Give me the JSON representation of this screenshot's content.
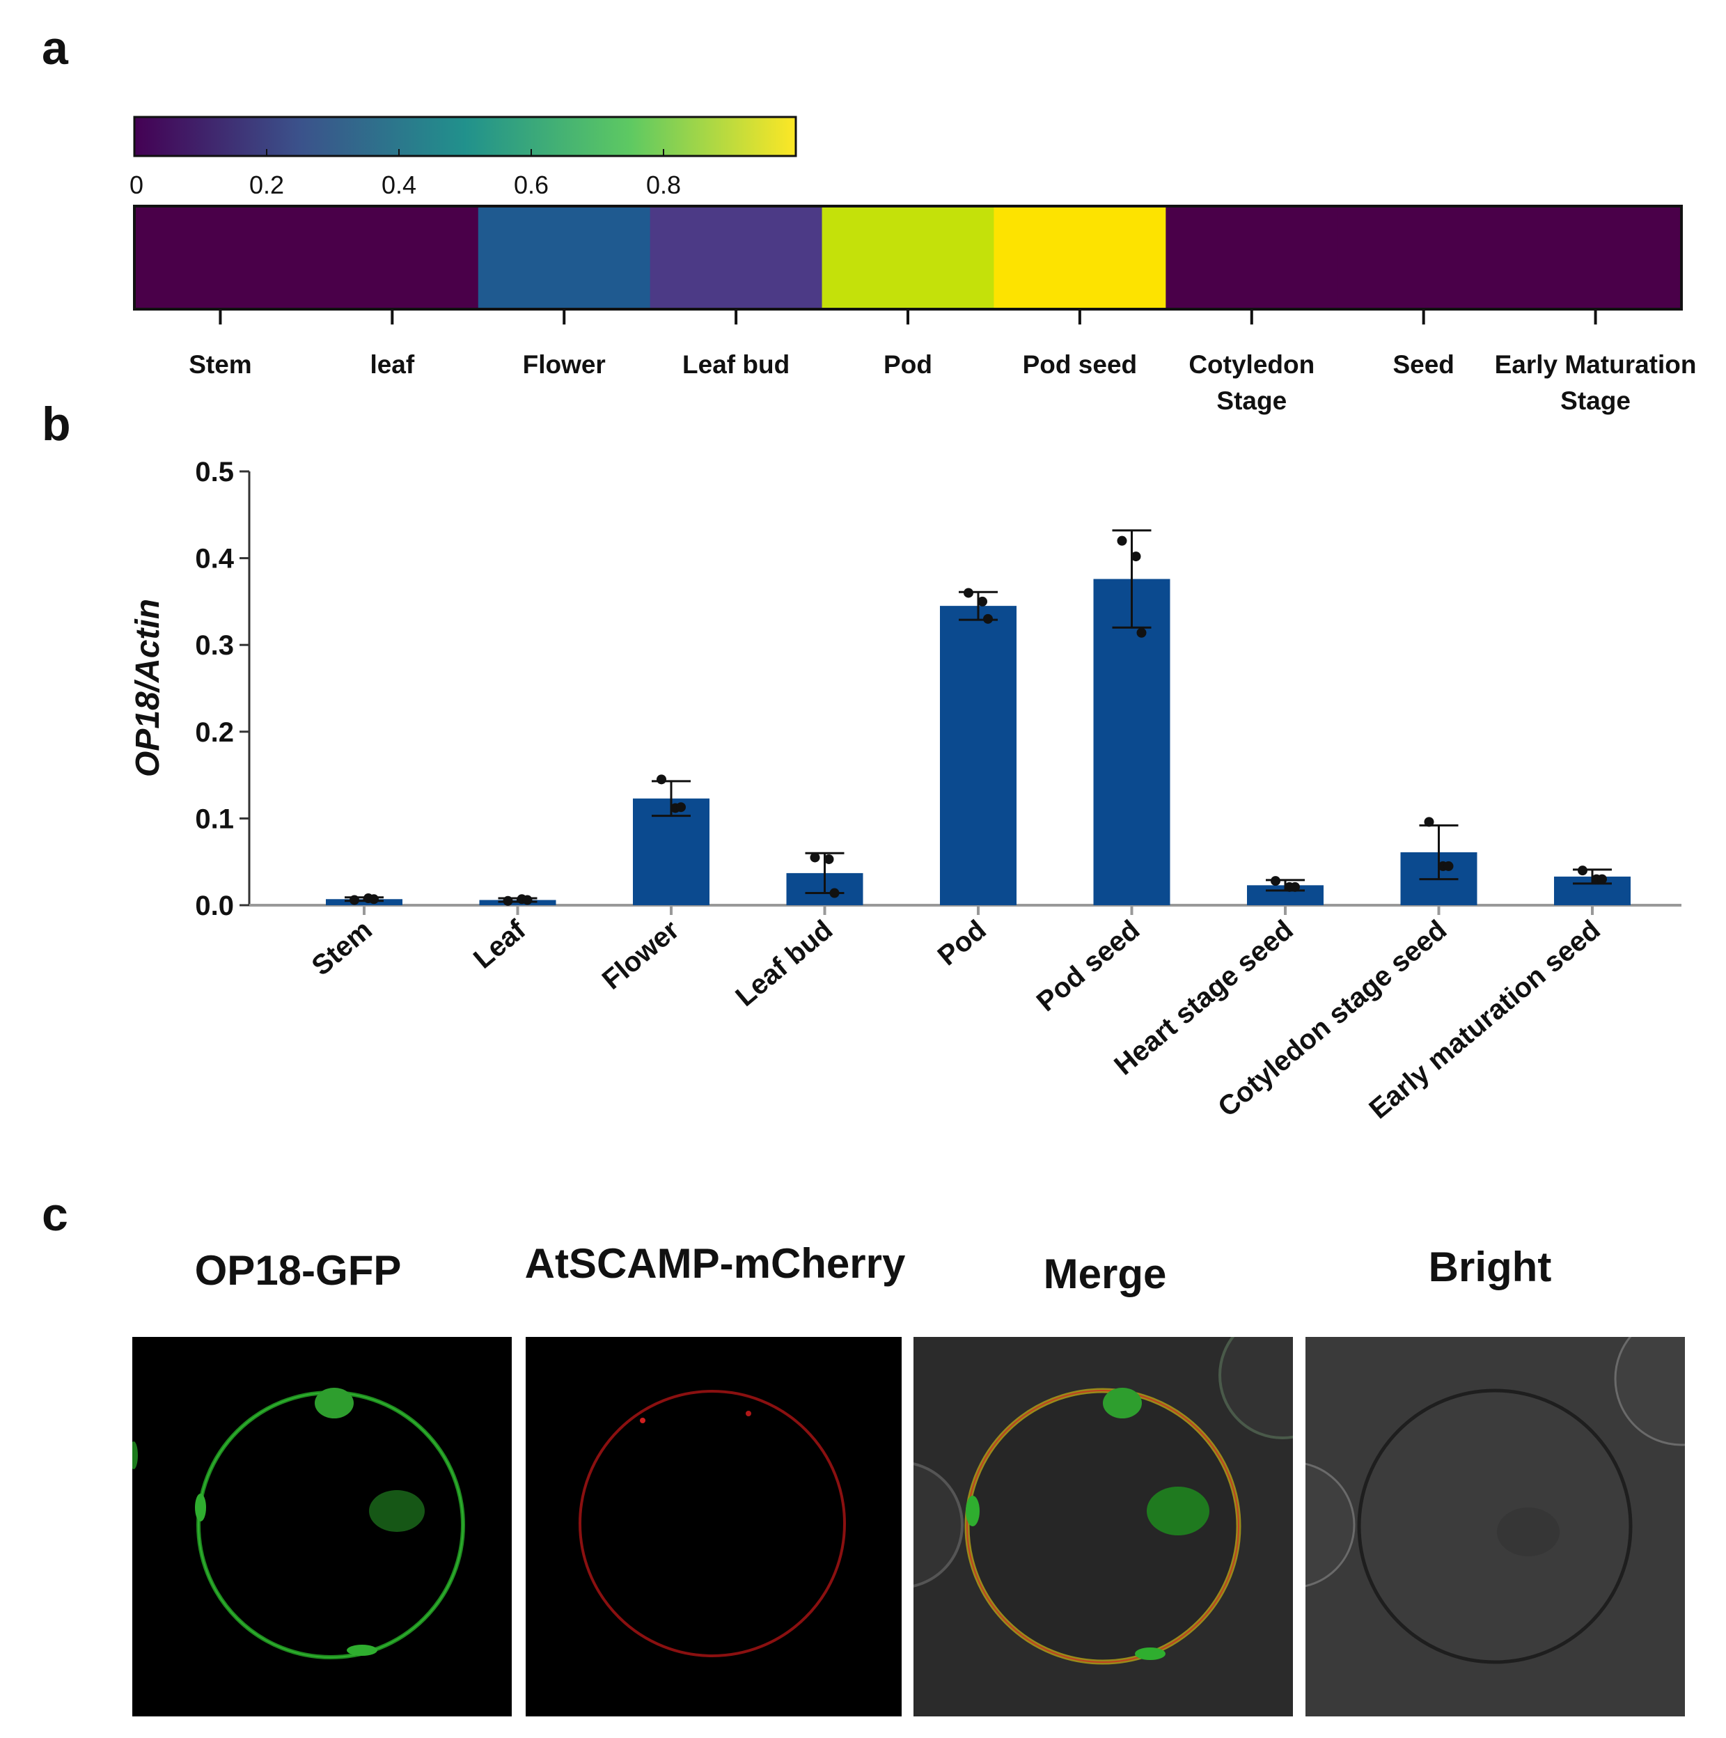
{
  "panels": {
    "a": "a",
    "b": "b",
    "c": "c"
  },
  "colorbar": {
    "ticks": [
      "0",
      "0.2",
      "0.4",
      "0.6",
      "0.8"
    ],
    "tick_values": [
      0,
      0.2,
      0.4,
      0.6,
      0.8
    ],
    "range": [
      0,
      1
    ],
    "colormap": [
      "#440154",
      "#3b528b",
      "#21918c",
      "#5ec962",
      "#fde725"
    ]
  },
  "heatmap": {
    "cells": [
      {
        "color": "#4a0049"
      },
      {
        "color": "#4a0049"
      },
      {
        "color": "#1f5a90"
      },
      {
        "color": "#4c3a86"
      },
      {
        "color": "#c4e10a"
      },
      {
        "color": "#fde300"
      },
      {
        "color": "#4a0049"
      },
      {
        "color": "#4a0049"
      },
      {
        "color": "#4a0049"
      }
    ],
    "labels": [
      [
        "Stem"
      ],
      [
        "leaf"
      ],
      [
        "Flower"
      ],
      [
        "Leaf bud"
      ],
      [
        "Pod"
      ],
      [
        "Pod seed"
      ],
      [
        "Cotyledon",
        "Stage"
      ],
      [
        "Seed"
      ],
      [
        "Early Maturation",
        "Stage"
      ]
    ]
  },
  "chart_data": {
    "type": "bar",
    "ylabel": "OP18/Actin",
    "ylim": [
      0,
      0.5
    ],
    "yticks": [
      "0.0",
      "0.1",
      "0.2",
      "0.3",
      "0.4",
      "0.5"
    ],
    "ytick_values": [
      0,
      0.1,
      0.2,
      0.3,
      0.4,
      0.5
    ],
    "bar_color": "#0b4a8f",
    "categories": [
      "Stem",
      "Leaf",
      "Flower",
      "Leaf bud",
      "Pod",
      "Pod seed",
      "Heart stage seed",
      "Cotyledon stage seed",
      "Early maturation seed"
    ],
    "values": [
      0.007,
      0.006,
      0.123,
      0.037,
      0.345,
      0.376,
      0.023,
      0.061,
      0.033
    ],
    "errors": [
      0.002,
      0.002,
      0.02,
      0.023,
      0.016,
      0.056,
      0.006,
      0.031,
      0.008
    ],
    "points": [
      [
        0.006,
        0.008,
        0.007
      ],
      [
        0.005,
        0.007,
        0.006
      ],
      [
        0.145,
        0.112,
        0.113
      ],
      [
        0.055,
        0.053,
        0.014
      ],
      [
        0.36,
        0.35,
        0.33
      ],
      [
        0.42,
        0.402,
        0.314
      ],
      [
        0.028,
        0.021,
        0.021
      ],
      [
        0.096,
        0.045,
        0.045
      ],
      [
        0.04,
        0.03,
        0.03
      ]
    ]
  },
  "microscopy": {
    "titles": [
      "OP18-GFP",
      "AtSCAMP-mCherry",
      "Merge",
      "Bright"
    ]
  }
}
